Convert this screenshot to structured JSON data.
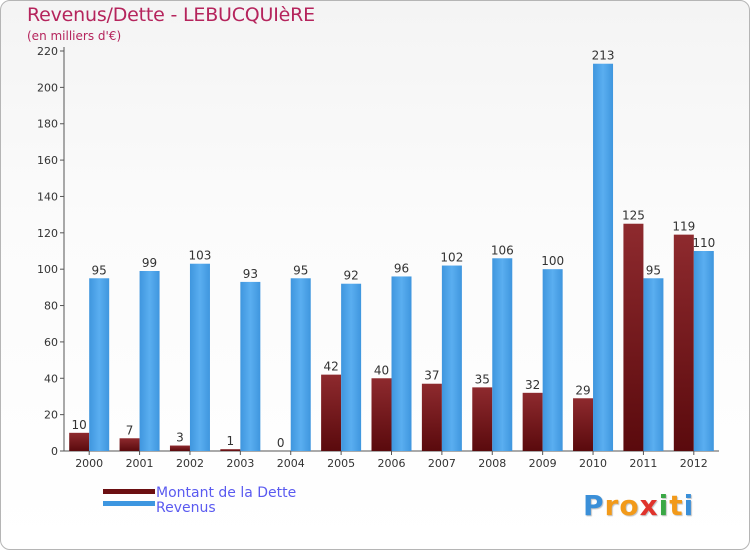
{
  "header": {
    "title": "Revenus/Dette - LEBUCQUIèRE",
    "subtitle": "(en milliers d'€)"
  },
  "chart_data": {
    "type": "bar",
    "title": "Revenus/Dette - LEBUCQUIèRE",
    "subtitle": "(en milliers d'€)",
    "categories": [
      "2000",
      "2001",
      "2002",
      "2003",
      "2004",
      "2005",
      "2006",
      "2007",
      "2008",
      "2009",
      "2010",
      "2011",
      "2012"
    ],
    "series": [
      {
        "name": "Montant de la Dette",
        "color": "#7a1c20",
        "values": [
          10,
          7,
          3,
          1,
          0,
          42,
          40,
          37,
          35,
          32,
          29,
          125,
          119
        ]
      },
      {
        "name": "Revenus",
        "color": "#4aa0e6",
        "values": [
          95,
          99,
          103,
          93,
          95,
          92,
          96,
          102,
          106,
          100,
          213,
          95,
          110
        ]
      }
    ],
    "yticks": [
      0,
      20,
      40,
      60,
      80,
      100,
      120,
      140,
      160,
      180,
      200,
      220
    ],
    "ylim": [
      0,
      220
    ],
    "grid": false,
    "legend_position": "bottom-left"
  },
  "legend": {
    "items": [
      {
        "label": "Montant de la Dette",
        "color": "#6b0f12"
      },
      {
        "label": "Revenus",
        "color": "#3d96e0"
      }
    ]
  },
  "logo": {
    "letters": [
      "P",
      "r",
      "o",
      "x",
      "i",
      "t",
      "i"
    ],
    "colors": [
      "#3a8fd8",
      "#f29a1a",
      "#f29a1a",
      "#e0332c",
      "#3aa845",
      "#f29a1a",
      "#3a8fd8"
    ]
  }
}
